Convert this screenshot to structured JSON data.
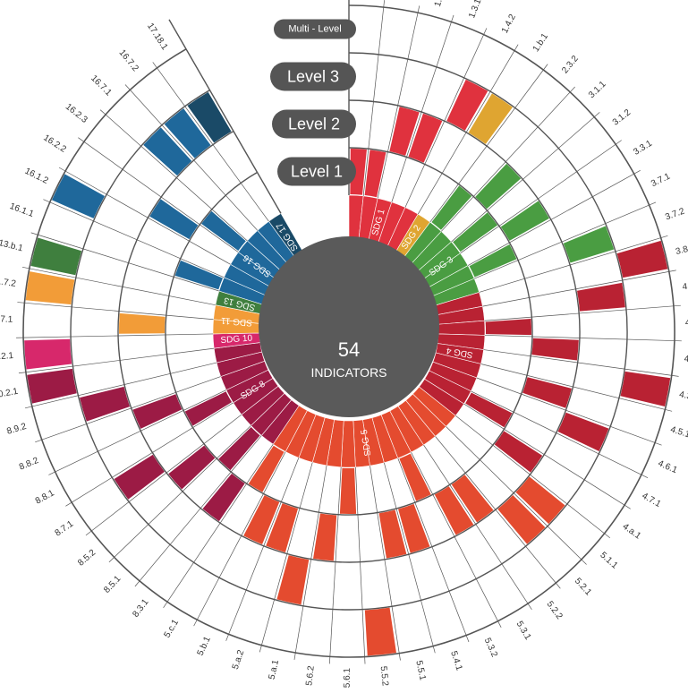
{
  "chart_data": {
    "type": "radial-matrix",
    "center_value": "54",
    "center_label": "INDICATORS",
    "levels": [
      "Level 1",
      "Level 2",
      "Level 3",
      "Multi - Level"
    ],
    "sdgs": [
      {
        "key": "SDG 1",
        "color": "#e0323e"
      },
      {
        "key": "SDG 2",
        "color": "#dfa531"
      },
      {
        "key": "SDG 3",
        "color": "#4a9d42"
      },
      {
        "key": "SDG 4",
        "color": "#b92233"
      },
      {
        "key": "SDG 5",
        "color": "#e44b2f"
      },
      {
        "key": "SDG 8",
        "color": "#9c1b45"
      },
      {
        "key": "SDG 10",
        "color": "#d7286b"
      },
      {
        "key": "SDG 11",
        "color": "#f29c38"
      },
      {
        "key": "SDG 13",
        "color": "#3f7f3e"
      },
      {
        "key": "SDG 16",
        "color": "#1f689b"
      },
      {
        "key": "SDG 17",
        "color": "#1a4a67"
      }
    ],
    "indicators": [
      {
        "code": "1.1.1",
        "sdg": "SDG 1",
        "level": 1
      },
      {
        "code": "1.2.1",
        "sdg": "SDG 1",
        "level": 1
      },
      {
        "code": "1.2.2",
        "sdg": "SDG 1",
        "level": 2
      },
      {
        "code": "1.3.1",
        "sdg": "SDG 1",
        "level": 2
      },
      {
        "code": "1.4.2",
        "sdg": "SDG 1",
        "level": 3
      },
      {
        "code": "1.b.1",
        "sdg": "SDG 2",
        "level": 3
      },
      {
        "code": "2.3.2",
        "sdg": "SDG 3",
        "level": 1
      },
      {
        "code": "3.1.1",
        "sdg": "SDG 3",
        "level": 2
      },
      {
        "code": "3.1.2",
        "sdg": "SDG 3",
        "level": 1
      },
      {
        "code": "3.3.1",
        "sdg": "SDG 3",
        "level": 2
      },
      {
        "code": "3.7.1",
        "sdg": "SDG 3",
        "level": 1
      },
      {
        "code": "3.7.2",
        "sdg": "SDG 3",
        "level": 3
      },
      {
        "code": "3.8.1",
        "sdg": "SDG 4",
        "level": 4
      },
      {
        "code": "4.1.1",
        "sdg": "SDG 4",
        "level": 3
      },
      {
        "code": "4.2.1",
        "sdg": "SDG 4",
        "level": 1
      },
      {
        "code": "4.2.2",
        "sdg": "SDG 4",
        "level": 2
      },
      {
        "code": "4.3.1",
        "sdg": "SDG 4",
        "level": 4
      },
      {
        "code": "4.5.1",
        "sdg": "SDG 4",
        "level": 2
      },
      {
        "code": "4.6.1",
        "sdg": "SDG 4",
        "level": 3
      },
      {
        "code": "4.7.1",
        "sdg": "SDG 4",
        "level": 1
      },
      {
        "code": "4.a.1",
        "sdg": "SDG 4",
        "level": 2
      },
      {
        "code": "5.1.1",
        "sdg": "SDG 5",
        "level": 3
      },
      {
        "code": "5.2.1",
        "sdg": "SDG 5",
        "level": 3
      },
      {
        "code": "5.2.2",
        "sdg": "SDG 5",
        "level": 2
      },
      {
        "code": "5.3.1",
        "sdg": "SDG 5",
        "level": 2
      },
      {
        "code": "5.3.2",
        "sdg": "SDG 5",
        "level": 1
      },
      {
        "code": "5.4.1",
        "sdg": "SDG 5",
        "level": 2
      },
      {
        "code": "5.5.1",
        "sdg": "SDG 5",
        "level": 2
      },
      {
        "code": "5.5.2",
        "sdg": "SDG 5",
        "level": 4
      },
      {
        "code": "5.6.1",
        "sdg": "SDG 5",
        "level": 1
      },
      {
        "code": "5.6.2",
        "sdg": "SDG 5",
        "level": 2
      },
      {
        "code": "5.a.1",
        "sdg": "SDG 5",
        "level": 3
      },
      {
        "code": "5.a.2",
        "sdg": "SDG 5",
        "level": 2
      },
      {
        "code": "5.b.1",
        "sdg": "SDG 5",
        "level": 2
      },
      {
        "code": "5.c.1",
        "sdg": "SDG 5",
        "level": 1
      },
      {
        "code": "8.3.1",
        "sdg": "SDG 8",
        "level": 2
      },
      {
        "code": "8.5.1",
        "sdg": "SDG 8",
        "level": 1
      },
      {
        "code": "8.5.2",
        "sdg": "SDG 8",
        "level": 2
      },
      {
        "code": "8.7.1",
        "sdg": "SDG 8",
        "level": 3
      },
      {
        "code": "8.8.1",
        "sdg": "SDG 8",
        "level": 1
      },
      {
        "code": "8.8.2",
        "sdg": "SDG 8",
        "level": 2
      },
      {
        "code": "8.9.2",
        "sdg": "SDG 8",
        "level": 3
      },
      {
        "code": "10.2.1",
        "sdg": "SDG 8",
        "level": 4
      },
      {
        "code": "11.2.1",
        "sdg": "SDG 10",
        "level": 4
      },
      {
        "code": "11.7.1",
        "sdg": "SDG 11",
        "level": 2
      },
      {
        "code": "11.7.2",
        "sdg": "SDG 11",
        "level": 4
      },
      {
        "code": "13.b.1",
        "sdg": "SDG 13",
        "level": 4
      },
      {
        "code": "16.1.1",
        "sdg": "SDG 16",
        "level": 1
      },
      {
        "code": "16.1.2",
        "sdg": "SDG 16",
        "level": 4
      },
      {
        "code": "16.2.2",
        "sdg": "SDG 16",
        "level": 2
      },
      {
        "code": "16.2.3",
        "sdg": "SDG 16",
        "level": 1
      },
      {
        "code": "16.7.1",
        "sdg": "SDG 16",
        "level": 3
      },
      {
        "code": "16.7.2",
        "sdg": "SDG 16",
        "level": 3
      },
      {
        "code": "17.18.1",
        "sdg": "SDG 17",
        "level": 3
      }
    ]
  }
}
